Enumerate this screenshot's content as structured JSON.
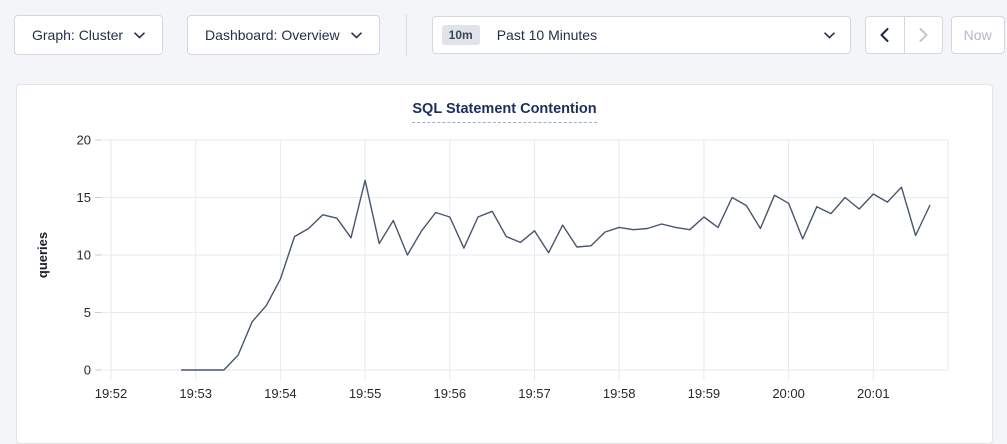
{
  "toolbar": {
    "graph_dropdown_label": "Graph: Cluster",
    "dashboard_dropdown_label": "Dashboard: Overview",
    "time_window_badge": "10m",
    "time_range_label": "Past 10 Minutes",
    "now_button_label": "Now"
  },
  "chart": {
    "title": "SQL Statement Contention"
  },
  "colors": {
    "page_background": "#f4f5f9",
    "card_background": "#ffffff",
    "line": "#47556e",
    "gridline": "#e9eaee",
    "title": "#1d2e5e",
    "disabled_text": "#b3b8c3"
  },
  "chart_data": {
    "type": "line",
    "title": "SQL Statement Contention",
    "xlabel": "",
    "ylabel": "queries",
    "ylim": [
      0,
      20
    ],
    "yticks": [
      0,
      5,
      10,
      15,
      20
    ],
    "xticks": [
      "19:52",
      "19:53",
      "19:54",
      "19:55",
      "19:56",
      "19:57",
      "19:58",
      "19:59",
      "20:00",
      "20:01"
    ],
    "x_axis_start": "19:51:53",
    "x_axis_end": "20:01:52",
    "grid": true,
    "legend": "none",
    "series": [
      {
        "name": "SQL Statement Contention",
        "points": [
          {
            "t": "19:52:50",
            "v": 0
          },
          {
            "t": "19:53:00",
            "v": 0
          },
          {
            "t": "19:53:10",
            "v": 0
          },
          {
            "t": "19:53:20",
            "v": 0
          },
          {
            "t": "19:53:30",
            "v": 1.3
          },
          {
            "t": "19:53:40",
            "v": 4.2
          },
          {
            "t": "19:53:50",
            "v": 5.6
          },
          {
            "t": "19:54:00",
            "v": 7.9
          },
          {
            "t": "19:54:10",
            "v": 11.6
          },
          {
            "t": "19:54:20",
            "v": 12.3
          },
          {
            "t": "19:54:30",
            "v": 13.5
          },
          {
            "t": "19:54:40",
            "v": 13.2
          },
          {
            "t": "19:54:50",
            "v": 11.5
          },
          {
            "t": "19:55:00",
            "v": 16.5
          },
          {
            "t": "19:55:10",
            "v": 11.0
          },
          {
            "t": "19:55:20",
            "v": 13.0
          },
          {
            "t": "19:55:30",
            "v": 10.0
          },
          {
            "t": "19:55:40",
            "v": 12.1
          },
          {
            "t": "19:55:50",
            "v": 13.7
          },
          {
            "t": "19:56:00",
            "v": 13.3
          },
          {
            "t": "19:56:10",
            "v": 10.6
          },
          {
            "t": "19:56:20",
            "v": 13.3
          },
          {
            "t": "19:56:30",
            "v": 13.8
          },
          {
            "t": "19:56:40",
            "v": 11.6
          },
          {
            "t": "19:56:50",
            "v": 11.1
          },
          {
            "t": "19:57:00",
            "v": 12.1
          },
          {
            "t": "19:57:10",
            "v": 10.2
          },
          {
            "t": "19:57:20",
            "v": 12.6
          },
          {
            "t": "19:57:30",
            "v": 10.7
          },
          {
            "t": "19:57:40",
            "v": 10.8
          },
          {
            "t": "19:57:50",
            "v": 12.0
          },
          {
            "t": "19:58:00",
            "v": 12.4
          },
          {
            "t": "19:58:10",
            "v": 12.2
          },
          {
            "t": "19:58:20",
            "v": 12.3
          },
          {
            "t": "19:58:30",
            "v": 12.7
          },
          {
            "t": "19:58:40",
            "v": 12.4
          },
          {
            "t": "19:58:50",
            "v": 12.2
          },
          {
            "t": "19:59:00",
            "v": 13.3
          },
          {
            "t": "19:59:10",
            "v": 12.4
          },
          {
            "t": "19:59:20",
            "v": 15.0
          },
          {
            "t": "19:59:30",
            "v": 14.3
          },
          {
            "t": "19:59:40",
            "v": 12.3
          },
          {
            "t": "19:59:50",
            "v": 15.2
          },
          {
            "t": "20:00:00",
            "v": 14.5
          },
          {
            "t": "20:00:10",
            "v": 11.4
          },
          {
            "t": "20:00:20",
            "v": 14.2
          },
          {
            "t": "20:00:30",
            "v": 13.6
          },
          {
            "t": "20:00:40",
            "v": 15.0
          },
          {
            "t": "20:00:50",
            "v": 14.0
          },
          {
            "t": "20:01:00",
            "v": 15.3
          },
          {
            "t": "20:01:10",
            "v": 14.6
          },
          {
            "t": "20:01:20",
            "v": 15.9
          },
          {
            "t": "20:01:30",
            "v": 11.7
          },
          {
            "t": "20:01:40",
            "v": 14.3
          }
        ]
      }
    ]
  }
}
